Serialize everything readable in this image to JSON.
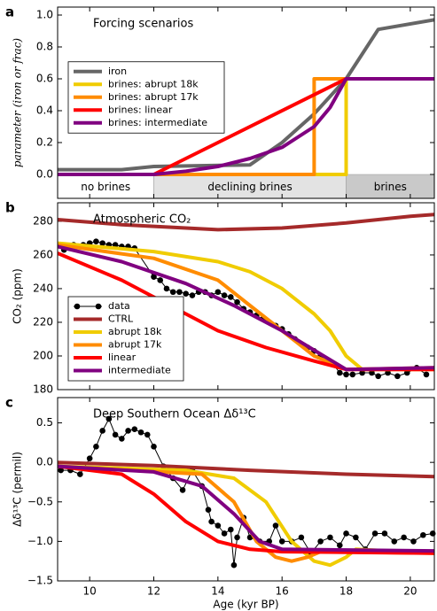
{
  "chart_data": [
    {
      "type": "line",
      "panel_label": "a",
      "title": "Forcing scenarios",
      "ylabel": "parameter (iron or frac)",
      "xlim": [
        9,
        20.75
      ],
      "ylim": [
        -0.15,
        1.05
      ],
      "xticks": [
        10,
        12,
        14,
        16,
        18,
        20
      ],
      "yticks": [
        {
          "value": 0,
          "label": "0.0"
        },
        {
          "value": 0.2,
          "label": "0.2"
        },
        {
          "value": 0.4,
          "label": "0.4"
        },
        {
          "value": 0.6,
          "label": "0.6"
        },
        {
          "value": 0.8,
          "label": "0.8"
        },
        {
          "value": 1,
          "label": "1.0"
        }
      ],
      "legend": "center left",
      "regions": [
        {
          "label": "no brines",
          "start": 9,
          "end": 12,
          "color": "#ffffff"
        },
        {
          "label": "declining brines",
          "start": 12,
          "end": 18,
          "color": "#e3e3e3"
        },
        {
          "label": "brines",
          "start": 18,
          "end": 20.75,
          "color": "#c9c9c9"
        }
      ],
      "series": [
        {
          "name": "iron",
          "color": "#666666",
          "x": [
            9,
            11,
            12,
            15,
            16,
            17,
            18,
            19,
            20.75
          ],
          "values": [
            0.03,
            0.03,
            0.05,
            0.06,
            0.2,
            0.38,
            0.6,
            0.91,
            0.97
          ]
        },
        {
          "name": "brines: abrupt 18k",
          "color": "#f0cc00",
          "x": [
            9,
            18,
            18,
            20.75
          ],
          "values": [
            0,
            0,
            0.6,
            0.6
          ]
        },
        {
          "name": "brines: abrupt 17k",
          "color": "#ff8c00",
          "x": [
            9,
            17,
            17,
            20.75
          ],
          "values": [
            0,
            0,
            0.6,
            0.6
          ]
        },
        {
          "name": "brines: linear",
          "color": "#ff0000",
          "x": [
            9,
            12,
            18,
            20.75
          ],
          "values": [
            0,
            0,
            0.6,
            0.6
          ]
        },
        {
          "name": "brines: intermediate",
          "color": "#800080",
          "x": [
            9,
            12,
            13,
            14,
            15,
            16,
            17,
            17.5,
            18,
            20.75
          ],
          "values": [
            0,
            0,
            0.02,
            0.05,
            0.1,
            0.17,
            0.3,
            0.42,
            0.6,
            0.6
          ]
        }
      ]
    },
    {
      "type": "line",
      "panel_label": "b",
      "title": "Atmospheric CO₂",
      "ylabel": "CO₂ (ppm)",
      "xlim": [
        9,
        20.75
      ],
      "ylim": [
        180,
        291
      ],
      "xticks": [
        10,
        12,
        14,
        16,
        18,
        20
      ],
      "yticks": [
        180,
        200,
        220,
        240,
        260,
        280
      ],
      "legend": "lower left",
      "series": [
        {
          "name": "data",
          "color": "#000000",
          "marker": true,
          "x": [
            9.2,
            9.5,
            9.8,
            10,
            10.2,
            10.4,
            10.6,
            10.8,
            11,
            11.2,
            11.4,
            12,
            12.2,
            12.4,
            12.6,
            12.8,
            13,
            13.2,
            13.4,
            13.6,
            13.8,
            14,
            14.2,
            14.4,
            14.6,
            14.8,
            15,
            15.2,
            15.4,
            15.6,
            15.8,
            16,
            16.2,
            16.4,
            16.6,
            16.8,
            17,
            17.2,
            17.4,
            17.6,
            17.8,
            18,
            18.2,
            18.5,
            18.8,
            19,
            19.3,
            19.6,
            19.9,
            20.2,
            20.5
          ],
          "values": [
            263,
            266,
            266,
            267,
            268,
            267,
            266,
            266,
            265,
            265,
            264,
            247,
            245,
            240,
            238,
            238,
            237,
            236,
            238,
            238,
            236,
            238,
            236,
            235,
            232,
            228,
            226,
            224,
            222,
            220,
            218,
            216,
            213,
            210,
            207,
            205,
            203,
            200,
            197,
            195,
            190,
            189,
            189,
            190,
            190,
            188,
            190,
            188,
            190,
            193,
            189
          ]
        },
        {
          "name": "CTRL",
          "color": "#a52a2a",
          "x": [
            9,
            11,
            13,
            14,
            16,
            18,
            20,
            20.75
          ],
          "values": [
            281,
            278,
            276,
            275,
            276,
            279,
            283,
            284
          ]
        },
        {
          "name": "abrupt 18k",
          "color": "#f0cc00",
          "x": [
            9,
            12,
            14,
            15,
            16,
            17,
            17.5,
            18,
            18.5,
            20.75
          ],
          "values": [
            267,
            262,
            256,
            250,
            240,
            225,
            215,
            200,
            192,
            192
          ]
        },
        {
          "name": "abrupt 17k",
          "color": "#ff8c00",
          "x": [
            9,
            12,
            14,
            15,
            16,
            17,
            18,
            20.75
          ],
          "values": [
            266,
            258,
            245,
            230,
            215,
            200,
            192,
            193
          ]
        },
        {
          "name": "linear",
          "color": "#ff0000",
          "x": [
            9,
            11,
            12.5,
            14,
            15.5,
            17,
            18,
            20.75
          ],
          "values": [
            261,
            245,
            230,
            215,
            205,
            197,
            192,
            192
          ]
        },
        {
          "name": "intermediate",
          "color": "#800080",
          "x": [
            9,
            11,
            13,
            14.5,
            16,
            17.3,
            18,
            20.75
          ],
          "values": [
            265,
            256,
            243,
            230,
            215,
            200,
            192,
            193
          ]
        }
      ]
    },
    {
      "type": "line",
      "panel_label": "c",
      "title": "Deep Southern Ocean Δδ¹³C",
      "ylabel": "Δδ¹³C (permil)",
      "xlabel": "Age (kyr BP)",
      "xlim": [
        9,
        20.75
      ],
      "ylim": [
        -1.5,
        0.82
      ],
      "xticks": [
        10,
        12,
        14,
        16,
        18,
        20
      ],
      "yticks": [
        {
          "value": -1.5,
          "label": "−1.5"
        },
        {
          "value": -1,
          "label": "−1.0"
        },
        {
          "value": -0.5,
          "label": "−0.5"
        },
        {
          "value": 0,
          "label": "0.0"
        },
        {
          "value": 0.5,
          "label": "0.5"
        }
      ],
      "series": [
        {
          "color": "#000000",
          "marker": true,
          "x": [
            9.1,
            9.4,
            9.7,
            10,
            10.2,
            10.4,
            10.6,
            10.8,
            11,
            11.2,
            11.4,
            11.6,
            11.8,
            12,
            12.3,
            12.6,
            12.9,
            13.2,
            13.5,
            13.7,
            13.8,
            14,
            14.2,
            14.4,
            14.5,
            14.6,
            14.8,
            15,
            15.3,
            15.6,
            15.8,
            16,
            16.3,
            16.6,
            16.9,
            17.2,
            17.5,
            17.8,
            18,
            18.3,
            18.6,
            18.9,
            19.2,
            19.5,
            19.8,
            20.1,
            20.4,
            20.7
          ],
          "values": [
            -0.1,
            -0.1,
            -0.15,
            0.05,
            0.2,
            0.4,
            0.55,
            0.35,
            0.3,
            0.4,
            0.42,
            0.38,
            0.35,
            0.2,
            -0.05,
            -0.2,
            -0.35,
            -0.1,
            -0.3,
            -0.6,
            -0.75,
            -0.8,
            -0.9,
            -0.85,
            -1.3,
            -0.95,
            -0.7,
            -0.95,
            -1,
            -1,
            -0.8,
            -1,
            -1,
            -0.95,
            -1.15,
            -1,
            -0.95,
            -1.05,
            -0.9,
            -0.95,
            -1.1,
            -0.9,
            -0.9,
            -1,
            -0.95,
            -1,
            -0.92,
            -0.9
          ]
        },
        {
          "color": "#a52a2a",
          "x": [
            9,
            12,
            15,
            18,
            20.75
          ],
          "values": [
            0,
            -0.04,
            -0.1,
            -0.15,
            -0.18
          ]
        },
        {
          "color": "#f0cc00",
          "x": [
            9,
            13,
            14.5,
            15.5,
            16.3,
            17,
            17.5,
            18,
            18.3,
            20.75
          ],
          "values": [
            -0.05,
            -0.1,
            -0.2,
            -0.5,
            -1,
            -1.25,
            -1.3,
            -1.2,
            -1.1,
            -1.15
          ]
        },
        {
          "color": "#ff8c00",
          "x": [
            9,
            13.5,
            14.5,
            15.2,
            15.8,
            16.3,
            16.8,
            17.2,
            20.75
          ],
          "values": [
            -0.05,
            -0.15,
            -0.5,
            -1,
            -1.2,
            -1.25,
            -1.2,
            -1.13,
            -1.15
          ]
        },
        {
          "color": "#ff0000",
          "x": [
            9,
            11,
            12,
            13,
            14,
            15,
            16,
            20.75
          ],
          "values": [
            -0.05,
            -0.15,
            -0.4,
            -0.75,
            -1,
            -1.1,
            -1.13,
            -1.15
          ]
        },
        {
          "color": "#800080",
          "x": [
            9,
            12,
            13.5,
            14.5,
            15.3,
            16,
            20.75
          ],
          "values": [
            -0.05,
            -0.12,
            -0.3,
            -0.65,
            -1,
            -1.1,
            -1.12
          ]
        }
      ]
    }
  ]
}
